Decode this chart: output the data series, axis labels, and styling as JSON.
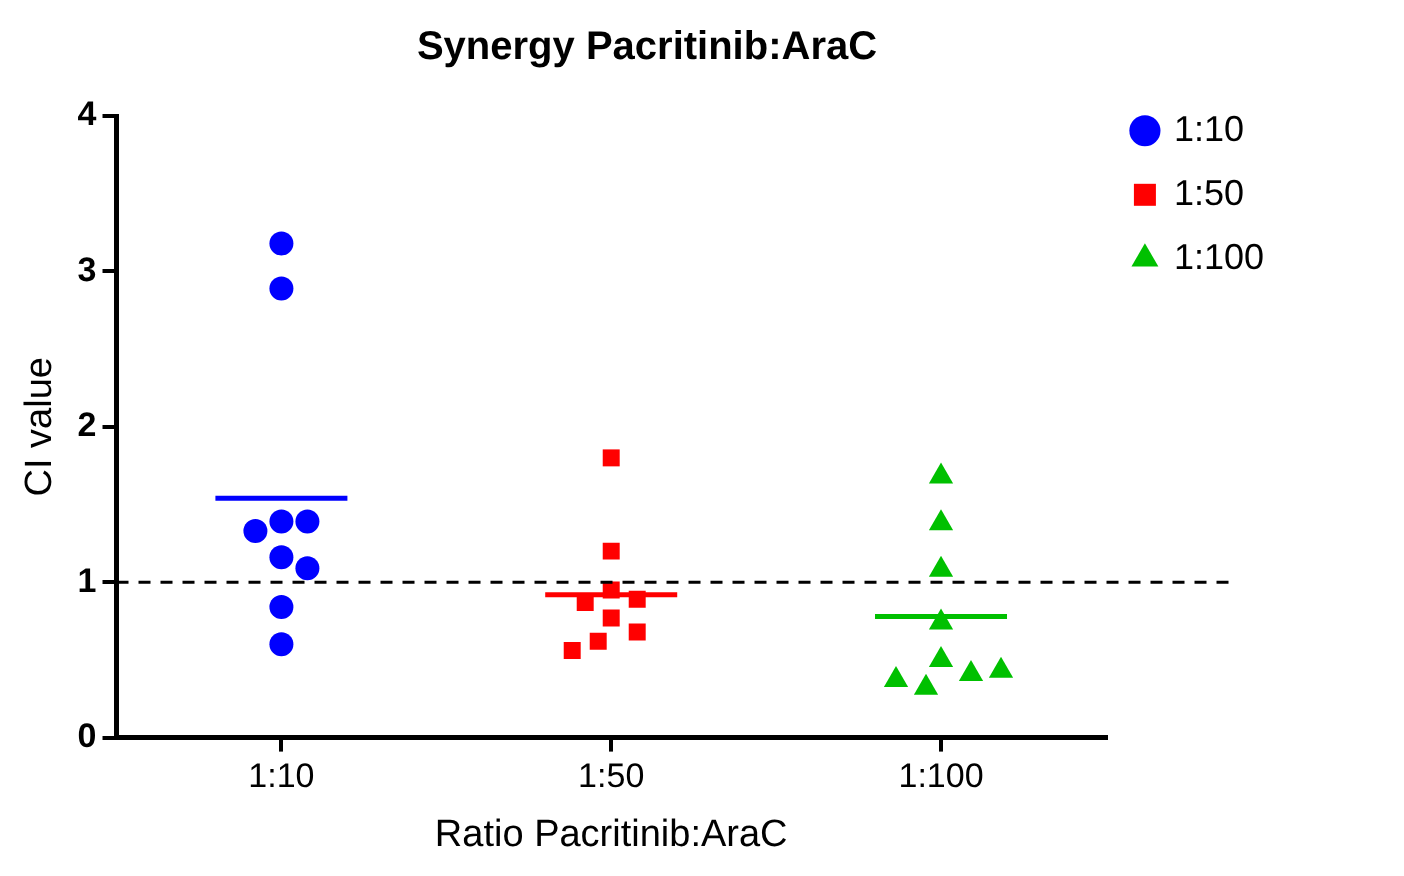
{
  "chart_data": {
    "type": "scatter",
    "title": "Synergy Pacritinib:AraC",
    "xlabel": "Ratio Pacritinib:AraC",
    "ylabel": "CI value",
    "categories": [
      "1:10",
      "1:50",
      "1:100"
    ],
    "ylim": [
      0,
      4
    ],
    "yticks": [
      0,
      1,
      2,
      3,
      4
    ],
    "grid": false,
    "legend": "top right",
    "series": [
      {
        "name": "1:10",
        "color": "#0000ff",
        "marker": "circle",
        "x": [
          "1:10",
          "1:10",
          "1:10",
          "1:10",
          "1:10",
          "1:10",
          "1:10",
          "1:10",
          "1:10"
        ],
        "values": [
          3.18,
          2.89,
          1.39,
          1.39,
          1.33,
          1.16,
          1.09,
          0.84,
          0.6
        ]
      },
      {
        "name": "1:50",
        "color": "#ff0000",
        "marker": "square",
        "x": [
          "1:50",
          "1:50",
          "1:50",
          "1:50",
          "1:50",
          "1:50",
          "1:50",
          "1:50",
          "1:50"
        ],
        "values": [
          1.8,
          1.2,
          0.95,
          0.89,
          0.87,
          0.77,
          0.68,
          0.62,
          0.56
        ]
      },
      {
        "name": "1:100",
        "color": "#00c000",
        "marker": "triangle",
        "x": [
          "1:100",
          "1:100",
          "1:100",
          "1:100",
          "1:100",
          "1:100",
          "1:100",
          "1:100",
          "1:100"
        ],
        "values": [
          1.68,
          1.38,
          1.08,
          0.74,
          0.5,
          0.41,
          0.32,
          0.37,
          0.43
        ]
      },
      {
        "type": "box",
        "colors": [
          "#0000ff",
          "#ff0000",
          "#00c000"
        ],
        "boxes": [
          {
            "low": 1.54,
            "q1": 1.54,
            "median": 1.54,
            "q3": 1.54,
            "high": 1.54
          },
          {
            "low": 0.92,
            "q1": 0.92,
            "median": 0.92,
            "q3": 0.92,
            "high": 0.92
          },
          {
            "low": 0.78,
            "q1": 0.78,
            "median": 0.78,
            "q3": 0.78,
            "high": 0.78
          }
        ]
      }
    ],
    "ref_lines": [
      {
        "axis": "y",
        "value": 1,
        "color": "#000000",
        "line_style": "dashed"
      }
    ]
  }
}
